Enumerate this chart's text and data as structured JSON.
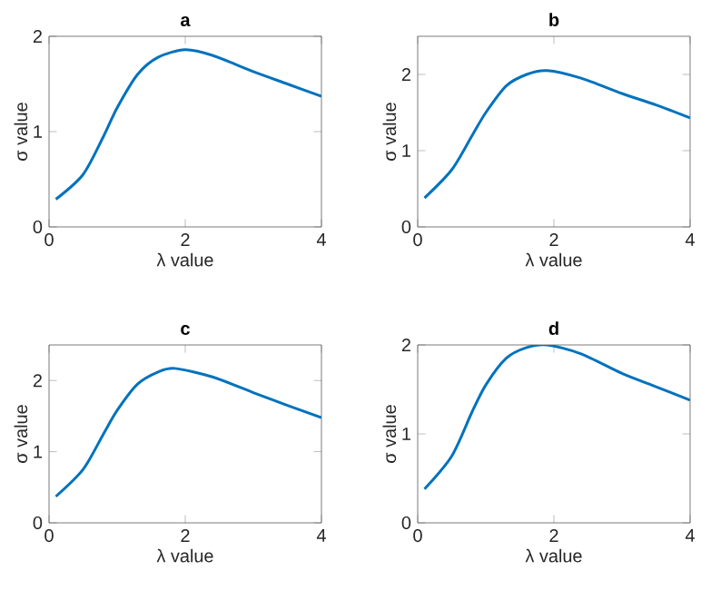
{
  "chart_data": [
    {
      "type": "line",
      "title": "a",
      "xlabel": "λ value",
      "ylabel": "σ value",
      "x": [
        0.1,
        0.5,
        0.8,
        1.0,
        1.3,
        1.6,
        2.0,
        2.4,
        3.0,
        3.5,
        4.0
      ],
      "series": [
        {
          "color": "#0072bd",
          "values": [
            0.29,
            0.55,
            0.95,
            1.25,
            1.6,
            1.78,
            1.86,
            1.8,
            1.63,
            1.5,
            1.37
          ]
        }
      ],
      "xlim": [
        0,
        4
      ],
      "ylim": [
        0,
        2
      ],
      "xticks": [
        0,
        2,
        4
      ],
      "yticks": [
        0,
        1,
        2
      ]
    },
    {
      "type": "line",
      "title": "b",
      "xlabel": "λ value",
      "ylabel": "σ value",
      "x": [
        0.1,
        0.5,
        0.8,
        1.0,
        1.3,
        1.6,
        1.9,
        2.4,
        3.0,
        3.5,
        4.0
      ],
      "series": [
        {
          "color": "#0072bd",
          "values": [
            0.38,
            0.75,
            1.2,
            1.5,
            1.85,
            2.0,
            2.05,
            1.95,
            1.75,
            1.6,
            1.43
          ]
        }
      ],
      "xlim": [
        0,
        4
      ],
      "ylim": [
        0,
        2.5
      ],
      "xticks": [
        0,
        2,
        4
      ],
      "yticks": [
        0,
        1,
        2
      ]
    },
    {
      "type": "line",
      "title": "c",
      "xlabel": "λ value",
      "ylabel": "σ value",
      "x": [
        0.1,
        0.5,
        0.8,
        1.0,
        1.3,
        1.6,
        1.85,
        2.4,
        3.0,
        3.5,
        4.0
      ],
      "series": [
        {
          "color": "#0072bd",
          "values": [
            0.37,
            0.75,
            1.25,
            1.58,
            1.95,
            2.12,
            2.17,
            2.05,
            1.83,
            1.65,
            1.48
          ]
        }
      ],
      "xlim": [
        0,
        4
      ],
      "ylim": [
        0,
        2.5
      ],
      "xticks": [
        0,
        2,
        4
      ],
      "yticks": [
        0,
        1,
        2
      ]
    },
    {
      "type": "line",
      "title": "d",
      "xlabel": "λ value",
      "ylabel": "σ value",
      "x": [
        0.1,
        0.5,
        0.8,
        1.0,
        1.3,
        1.6,
        1.9,
        2.4,
        3.0,
        3.5,
        4.0
      ],
      "series": [
        {
          "color": "#0072bd",
          "values": [
            0.38,
            0.75,
            1.25,
            1.55,
            1.85,
            1.97,
            2.0,
            1.9,
            1.68,
            1.53,
            1.38
          ]
        }
      ],
      "xlim": [
        0,
        4
      ],
      "ylim": [
        0,
        2
      ],
      "xticks": [
        0,
        2,
        4
      ],
      "yticks": [
        0,
        1,
        2
      ]
    }
  ]
}
